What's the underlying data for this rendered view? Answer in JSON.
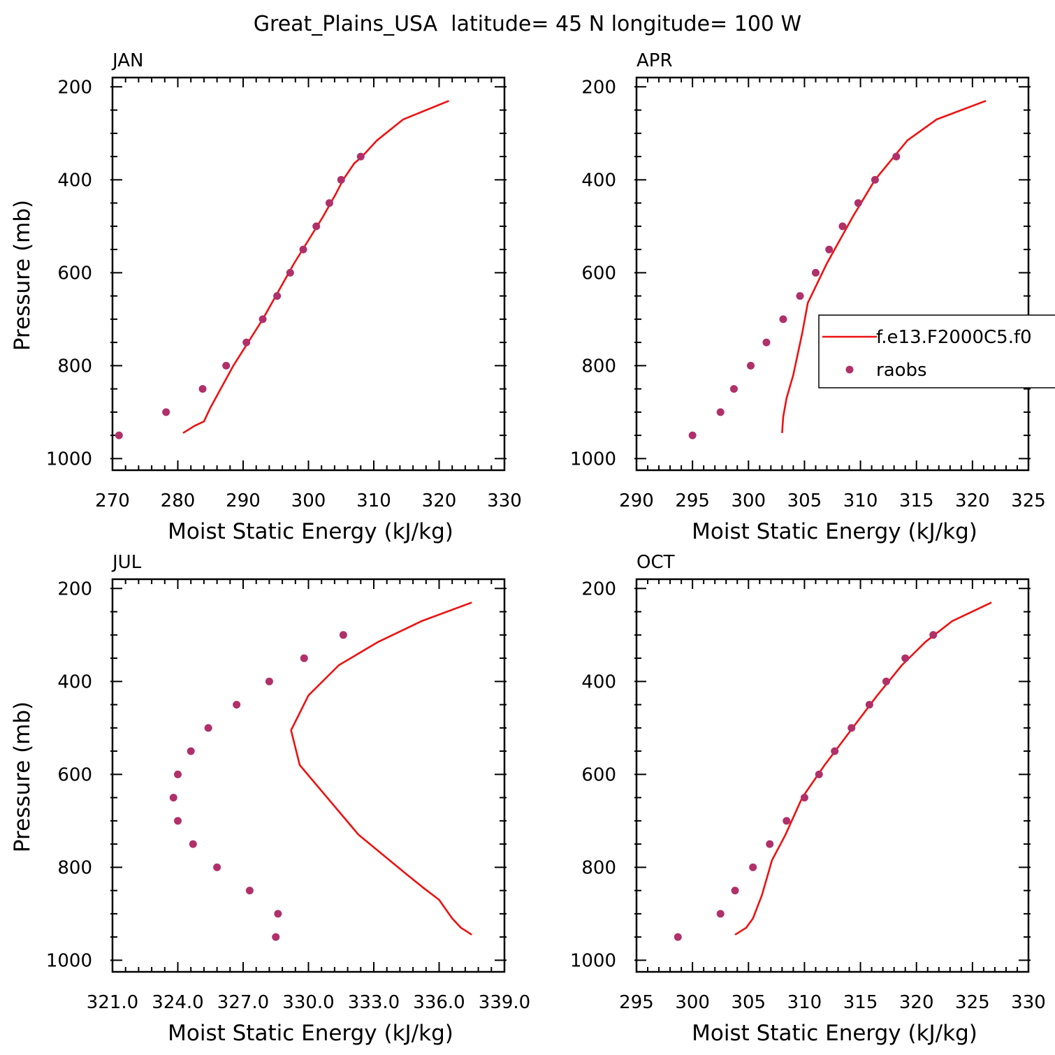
{
  "title": "Great_Plains_USA  latitude= 45 N longitude= 100 W",
  "colors": {
    "model": "#ee1111",
    "raobs": "#b0306a",
    "axis": "#000000"
  },
  "legend": {
    "placement": "right of APR panel, clipped at figure edge",
    "model_label": "f.e13.F2000C5.f0",
    "raobs_label": "raobs"
  },
  "chart_data": [
    {
      "type": "line",
      "panel": "JAN",
      "title": "JAN",
      "xlabel": "Moist Static Energy (kJ/kg)",
      "ylabel": "Pressure (mb)",
      "xlim": [
        270,
        330
      ],
      "ylim": [
        1000,
        200
      ],
      "xticks": [
        270,
        280,
        290,
        300,
        310,
        320,
        330
      ],
      "xtick_labels": [
        "270",
        "280",
        "290",
        "300",
        "310",
        "320",
        "330"
      ],
      "yticks": [
        200,
        400,
        600,
        800,
        1000
      ],
      "ytick_labels": [
        "200",
        "400",
        "600",
        "800",
        "1000"
      ],
      "grid": false,
      "series": [
        {
          "kind": "line",
          "p": [
            230,
            270,
            315,
            350,
            365,
            400,
            430,
            480,
            580,
            700,
            800,
            890,
            920,
            930,
            945
          ],
          "mse": [
            321.5,
            314.5,
            310.5,
            308.2,
            307.0,
            305.3,
            304.2,
            302.2,
            297.8,
            293.0,
            288.5,
            285.0,
            284.0,
            282.5,
            280.8
          ]
        },
        {
          "kind": "scatter",
          "p": [
            350,
            400,
            450,
            500,
            550,
            600,
            650,
            700,
            750,
            800,
            850,
            900,
            950
          ],
          "mse": [
            308.0,
            305.0,
            303.2,
            301.2,
            299.2,
            297.2,
            295.2,
            293.0,
            290.5,
            287.4,
            283.8,
            278.2,
            271.0
          ]
        }
      ]
    },
    {
      "type": "line",
      "panel": "APR",
      "title": "APR",
      "xlabel": "Moist Static Energy (kJ/kg)",
      "ylabel": "",
      "xlim": [
        290,
        325
      ],
      "ylim": [
        1000,
        200
      ],
      "xticks": [
        290,
        295,
        300,
        305,
        310,
        315,
        320,
        325
      ],
      "xtick_labels": [
        "290",
        "295",
        "300",
        "305",
        "310",
        "315",
        "320",
        "325"
      ],
      "yticks": [
        200,
        400,
        600,
        800,
        1000
      ],
      "ytick_labels": [
        "200",
        "400",
        "600",
        "800",
        "1000"
      ],
      "grid": false,
      "series": [
        {
          "kind": "line",
          "p": [
            230,
            270,
            315,
            350,
            400,
            480,
            580,
            665,
            730,
            820,
            870,
            910,
            945
          ],
          "mse": [
            321.2,
            316.8,
            314.2,
            313.0,
            311.3,
            309.3,
            307.0,
            305.3,
            304.8,
            304.0,
            303.4,
            303.1,
            303.0
          ]
        },
        {
          "kind": "scatter",
          "p": [
            350,
            400,
            450,
            500,
            550,
            600,
            650,
            700,
            750,
            800,
            850,
            900,
            950
          ],
          "mse": [
            313.2,
            311.3,
            309.8,
            308.4,
            307.2,
            306.0,
            304.6,
            303.1,
            301.6,
            300.2,
            298.7,
            297.5,
            295.0
          ]
        }
      ]
    },
    {
      "type": "line",
      "panel": "JUL",
      "title": "JUL",
      "xlabel": "Moist Static Energy (kJ/kg)",
      "ylabel": "Pressure (mb)",
      "xlim": [
        321,
        339
      ],
      "ylim": [
        1000,
        200
      ],
      "xticks": [
        321,
        324,
        327,
        330,
        333,
        336,
        339
      ],
      "xtick_labels": [
        "321.0",
        "324.0",
        "327.0",
        "330.0",
        "333.0",
        "336.0",
        "339.0"
      ],
      "yticks": [
        200,
        400,
        600,
        800,
        1000
      ],
      "ytick_labels": [
        "200",
        "400",
        "600",
        "800",
        "1000"
      ],
      "grid": false,
      "series": [
        {
          "kind": "line",
          "p": [
            230,
            270,
            315,
            365,
            430,
            505,
            580,
            730,
            815,
            845,
            870,
            910,
            930,
            945
          ],
          "mse": [
            337.5,
            335.2,
            333.2,
            331.4,
            330.0,
            329.2,
            329.6,
            332.3,
            334.5,
            335.3,
            336.0,
            336.6,
            337.0,
            337.5
          ]
        },
        {
          "kind": "scatter",
          "p": [
            300,
            350,
            400,
            450,
            500,
            550,
            600,
            650,
            700,
            750,
            800,
            850,
            900,
            950
          ],
          "mse": [
            331.6,
            329.8,
            328.2,
            326.7,
            325.4,
            324.6,
            324.0,
            323.8,
            324.0,
            324.7,
            325.8,
            327.3,
            328.6,
            328.5
          ]
        }
      ]
    },
    {
      "type": "line",
      "panel": "OCT",
      "title": "OCT",
      "xlabel": "Moist Static Energy (kJ/kg)",
      "ylabel": "",
      "xlim": [
        295,
        330
      ],
      "ylim": [
        1000,
        200
      ],
      "xticks": [
        295,
        300,
        305,
        310,
        315,
        320,
        325,
        330
      ],
      "xtick_labels": [
        "295",
        "300",
        "305",
        "310",
        "315",
        "320",
        "325",
        "330"
      ],
      "yticks": [
        200,
        400,
        600,
        800,
        1000
      ],
      "ytick_labels": [
        "200",
        "400",
        "600",
        "800",
        "1000"
      ],
      "grid": false,
      "series": [
        {
          "kind": "line",
          "p": [
            230,
            270,
            315,
            365,
            430,
            500,
            580,
            650,
            730,
            785,
            860,
            910,
            930,
            945
          ],
          "mse": [
            326.7,
            323.2,
            320.8,
            318.7,
            316.5,
            314.3,
            311.8,
            309.8,
            308.3,
            307.1,
            306.2,
            305.4,
            304.8,
            303.8
          ]
        },
        {
          "kind": "scatter",
          "p": [
            300,
            350,
            400,
            450,
            500,
            550,
            600,
            650,
            700,
            750,
            800,
            850,
            900,
            950
          ],
          "mse": [
            321.5,
            319.0,
            317.3,
            315.8,
            314.2,
            312.7,
            311.3,
            310.0,
            308.4,
            306.9,
            305.4,
            303.8,
            302.5,
            298.7
          ]
        }
      ]
    }
  ]
}
